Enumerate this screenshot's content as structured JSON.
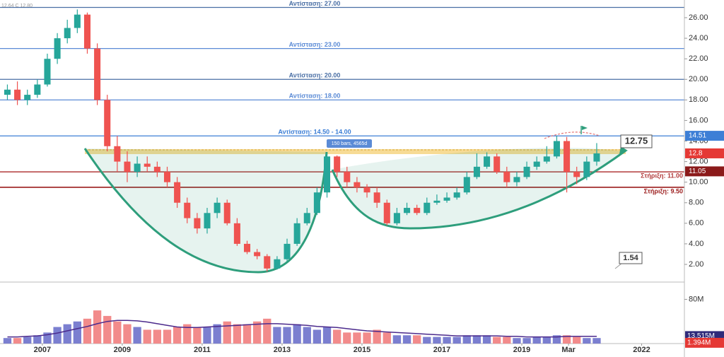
{
  "chart_data": {
    "type": "candlestick",
    "header": "12.64  C 12.80",
    "x": [
      2006.125,
      2006.375,
      2006.625,
      2006.875,
      2007.125,
      2007.375,
      2007.625,
      2007.875,
      2008.125,
      2008.375,
      2008.625,
      2008.875,
      2009.125,
      2009.375,
      2009.625,
      2009.875,
      2010.125,
      2010.375,
      2010.625,
      2010.875,
      2011.125,
      2011.375,
      2011.625,
      2011.875,
      2012.125,
      2012.375,
      2012.625,
      2012.875,
      2013.125,
      2013.375,
      2013.625,
      2013.875,
      2014.125,
      2014.375,
      2014.625,
      2014.875,
      2015.125,
      2015.375,
      2015.625,
      2015.875,
      2016.125,
      2016.375,
      2016.625,
      2016.875,
      2017.125,
      2017.375,
      2017.625,
      2017.875,
      2018.125,
      2018.375,
      2018.625,
      2018.875,
      2019.125,
      2019.375,
      2019.625,
      2019.875,
      2020.125,
      2020.375,
      2020.625,
      2020.875
    ],
    "open": [
      18.5,
      19,
      18,
      18.5,
      19.5,
      22,
      24,
      25,
      26.3,
      23,
      18,
      13.5,
      12,
      11,
      11.8,
      11.5,
      11,
      10,
      8,
      6.5,
      5.5,
      7,
      8,
      6,
      4,
      3.2,
      2.8,
      1.6,
      2.5,
      4,
      6,
      7,
      9,
      12.5,
      11,
      10,
      9.5,
      9,
      8,
      6,
      7,
      7.5,
      7,
      8,
      8.2,
      8.5,
      9,
      10.5,
      11.5,
      12.5,
      11,
      10,
      10.5,
      11.5,
      12,
      12.5,
      14,
      11,
      10.5,
      12
    ],
    "high": [
      19.5,
      19.8,
      19,
      20,
      22.5,
      24.5,
      25.8,
      26.8,
      26.5,
      23.5,
      18.5,
      14.5,
      13,
      12.5,
      12.5,
      12,
      11.5,
      10.5,
      8.5,
      7,
      7.5,
      8.5,
      8.3,
      6.5,
      4.3,
      3.5,
      3,
      2.8,
      4.5,
      6.5,
      7.5,
      9.5,
      12.8,
      12.6,
      11.5,
      10.5,
      9.8,
      9.5,
      8.3,
      7.5,
      8,
      7.8,
      8.5,
      8.8,
      9,
      9.5,
      11,
      12.8,
      12.9,
      12.8,
      11.5,
      11,
      12,
      12.5,
      13.5,
      14.5,
      14.4,
      11.5,
      12.5,
      13.8
    ],
    "low": [
      18,
      17.5,
      17.5,
      18.2,
      19.3,
      21.5,
      23.5,
      24.5,
      22.5,
      17.5,
      13,
      11,
      10,
      10.5,
      11,
      10.5,
      9.5,
      7.5,
      6,
      5,
      5,
      6.5,
      5.8,
      3.8,
      3,
      2.5,
      1.3,
      1.5,
      2.3,
      3.8,
      5.8,
      6.8,
      8.5,
      10.5,
      9.5,
      9,
      8.5,
      7.5,
      5.8,
      5.8,
      6.8,
      6.8,
      6.8,
      7.8,
      8,
      8.3,
      8.8,
      10.3,
      11.3,
      10.8,
      9.5,
      9.6,
      10.3,
      11.2,
      11.8,
      12.3,
      9,
      9.8,
      10.2,
      11.6
    ],
    "close": [
      19,
      18,
      18.5,
      19.5,
      22,
      24,
      25,
      26.3,
      23,
      18,
      13.5,
      12,
      11,
      11.8,
      11.5,
      11,
      10,
      8,
      6.5,
      5.5,
      7,
      8,
      6,
      4,
      3.2,
      2.8,
      1.6,
      2.5,
      4,
      6,
      7,
      9,
      12.5,
      11,
      10,
      9.5,
      9,
      8,
      6,
      7,
      7.5,
      7,
      8,
      8.2,
      8.5,
      9,
      10.5,
      11.5,
      12.5,
      11,
      10,
      10.5,
      11.5,
      12,
      12.5,
      14,
      11,
      10.5,
      12,
      12.8
    ],
    "volume": [
      10,
      10,
      12,
      15,
      20,
      30,
      35,
      40,
      45,
      60,
      50,
      40,
      35,
      30,
      25,
      25,
      25,
      30,
      35,
      30,
      30,
      35,
      40,
      35,
      35,
      40,
      45,
      30,
      30,
      35,
      30,
      25,
      30,
      25,
      20,
      20,
      20,
      25,
      20,
      15,
      15,
      15,
      12,
      12,
      12,
      12,
      15,
      15,
      15,
      12,
      12,
      10,
      10,
      12,
      12,
      15,
      15,
      12,
      10,
      10
    ],
    "volume_ma": [
      12,
      12,
      13,
      14,
      16,
      19,
      23,
      27,
      31,
      36,
      40,
      42,
      42,
      41,
      39,
      36,
      33,
      30,
      29,
      29,
      30,
      31,
      32,
      33,
      34,
      35,
      36,
      36,
      35,
      34,
      33,
      31,
      30,
      29,
      27,
      25,
      23,
      22,
      21,
      20,
      19,
      18,
      17,
      16,
      15,
      14,
      14,
      14,
      14,
      14,
      13,
      13,
      12,
      12,
      12,
      12,
      13,
      13,
      13,
      13
    ],
    "up_color": "#26a69a",
    "down_color": "#ef5350",
    "volume_up_color": "#7b7fd0",
    "volume_down_color": "#f28b8b",
    "volume_ma_color": "#4b2a8c",
    "xlim": [
      2005.94,
      2023.07
    ],
    "xticks": [
      2007,
      2009,
      2011,
      2013,
      2015,
      2017,
      2019,
      {
        "value": 2020.17,
        "label": "Mar"
      },
      2022
    ],
    "ylim": [
      0.35,
      27.72
    ],
    "yticks": [
      {
        "value": 2,
        "label": "2.00"
      },
      {
        "value": 4,
        "label": "4.00"
      },
      {
        "value": 6,
        "label": "6.00"
      },
      {
        "value": 8,
        "label": "8.00"
      },
      {
        "value": 10,
        "label": "10.00"
      },
      {
        "value": 12,
        "label": "12.00"
      },
      {
        "value": 14,
        "label": "14.00"
      },
      {
        "value": 16,
        "label": "16.00"
      },
      {
        "value": 18,
        "label": "18.00"
      },
      {
        "value": 20,
        "label": "20.00"
      },
      {
        "value": 22,
        "label": "22.00"
      },
      {
        "value": 24,
        "label": "24.00"
      },
      {
        "value": 26,
        "label": "26.00"
      }
    ],
    "volume_lim": [
      0,
      110
    ],
    "volume_ticks": [
      {
        "value": 80,
        "label": "80M"
      }
    ],
    "levels": [
      {
        "value": 27,
        "label": "Αντίσταση: 27.00",
        "color": "#4a6fa5",
        "side": "center"
      },
      {
        "value": 23,
        "label": "Αντίσταση: 23.00",
        "color": "#5b8bd6",
        "side": "center"
      },
      {
        "value": 20,
        "label": "Αντίσταση: 20.00",
        "color": "#4a6fa5",
        "side": "center"
      },
      {
        "value": 18,
        "label": "Αντίσταση: 18.00",
        "color": "#5b8bd6",
        "side": "center"
      },
      {
        "value": 14.5,
        "label": "Αντίσταση: 14.50 - 14.00",
        "color": "#3d7fd6",
        "side": "center"
      },
      {
        "value": 11,
        "label": "Στήριξη: 11.00",
        "color": "#b23b3b",
        "side": "right"
      },
      {
        "value": 9.5,
        "label": "Στήριξη: 9.50",
        "color": "#9b1c1c",
        "side": "right"
      }
    ],
    "price_badges": [
      {
        "value": 14.51,
        "color": "#3d7fd6"
      },
      {
        "value": 12.8,
        "color": "#e53935"
      },
      {
        "value": 11.05,
        "color": "#8b1a1a"
      }
    ],
    "volume_badges": [
      {
        "value": 13.515,
        "label": "13.515M",
        "color": "#2e2a7a"
      },
      {
        "value": 1.394,
        "label": "1.394M",
        "color": "#e53935"
      }
    ],
    "annotations": [
      "150 bars, 4565d",
      "12.75",
      "1.54"
    ]
  }
}
